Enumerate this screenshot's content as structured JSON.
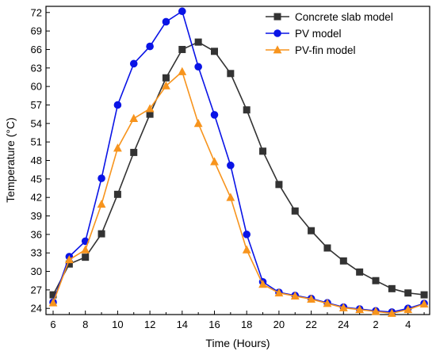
{
  "chart_data": {
    "type": "line",
    "title": "",
    "xlabel": "Time (Hours)",
    "ylabel": "Temperature (°C)",
    "ylim": [
      23,
      73
    ],
    "y_ticks": [
      24,
      27,
      30,
      33,
      36,
      39,
      42,
      45,
      48,
      51,
      54,
      57,
      60,
      63,
      66,
      69,
      72
    ],
    "x_tick_labels": [
      "6",
      "8",
      "10",
      "12",
      "14",
      "16",
      "18",
      "20",
      "22",
      "24",
      "2",
      "4"
    ],
    "x_categories": [
      "6",
      "7",
      "8",
      "9",
      "10",
      "11",
      "12",
      "13",
      "14",
      "15",
      "16",
      "17",
      "18",
      "19",
      "20",
      "21",
      "22",
      "23",
      "24",
      "1",
      "2",
      "3",
      "4",
      "5"
    ],
    "grid": false,
    "legend_position": "top-right",
    "series": [
      {
        "name": "Concrete slab model",
        "color": "#333333",
        "marker": "square",
        "values": [
          26.2,
          31.2,
          32.3,
          36.1,
          42.5,
          49.3,
          55.5,
          61.4,
          66.0,
          67.2,
          65.7,
          62.1,
          56.2,
          49.5,
          44.1,
          39.8,
          36.6,
          33.8,
          31.7,
          29.9,
          28.5,
          27.2,
          26.5,
          26.2
        ]
      },
      {
        "name": "PV model",
        "color": "#0a14e6",
        "marker": "circle",
        "values": [
          25.0,
          32.4,
          34.9,
          45.1,
          57.0,
          63.7,
          66.5,
          70.5,
          72.2,
          63.2,
          55.4,
          47.2,
          36.0,
          28.3,
          26.6,
          26.1,
          25.6,
          24.9,
          24.2,
          23.9,
          23.6,
          23.4,
          24.0,
          24.8
        ]
      },
      {
        "name": "PV-fin model",
        "color": "#f7941d",
        "marker": "triangle",
        "values": [
          24.9,
          31.9,
          33.5,
          40.9,
          50.0,
          54.8,
          56.4,
          60.1,
          62.4,
          54.0,
          47.8,
          42.0,
          33.5,
          27.9,
          26.5,
          26.0,
          25.5,
          24.8,
          24.1,
          23.8,
          23.5,
          23.2,
          23.8,
          24.7
        ]
      }
    ]
  }
}
